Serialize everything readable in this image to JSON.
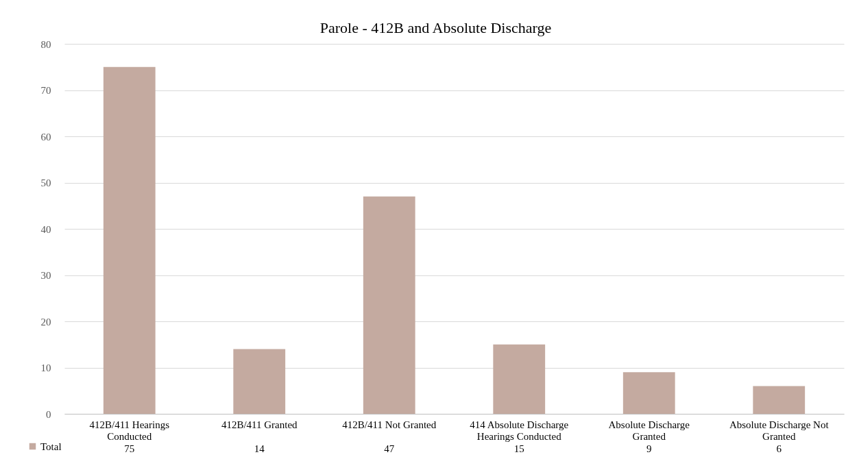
{
  "chart_data": {
    "type": "bar",
    "title": "Parole - 412B and Absolute Discharge",
    "categories": [
      "412B/411 Hearings Conducted",
      "412B/411 Granted",
      "412B/411 Not Granted",
      "414 Absolute Discharge Hearings Conducted",
      "Absolute Discharge Granted",
      "Absolute Discharge Not Granted"
    ],
    "series": [
      {
        "name": "Total",
        "color": "#c4aaa0",
        "values": [
          75,
          14,
          47,
          15,
          9,
          6
        ]
      }
    ],
    "ylim": [
      0,
      80
    ],
    "yticks": [
      0,
      10,
      20,
      30,
      40,
      50,
      60,
      70,
      80
    ],
    "grid": "y",
    "data_labels": true,
    "legend": "bottom"
  }
}
